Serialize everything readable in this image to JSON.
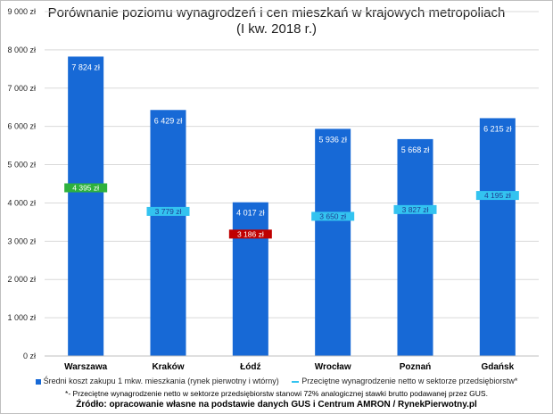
{
  "chart_data": {
    "type": "bar",
    "title_line1": "Porównanie poziomu wynagrodzeń i cen mieszkań w krajowych metropoliach",
    "title_line2": "(I kw. 2018 r.)",
    "categories": [
      "Warszawa",
      "Kraków",
      "Łódź",
      "Wrocław",
      "Poznań",
      "Gdańsk"
    ],
    "series": [
      {
        "name": "Średni koszt zakupu 1 mkw. mieszkania (rynek pierwotny i wtórny)",
        "values": [
          7824,
          6429,
          4017,
          5936,
          5668,
          6215
        ],
        "labels": [
          "7 824 zł",
          "6 429 zł",
          "4 017 zł",
          "5 936 zł",
          "5 668 zł",
          "6 215 zł"
        ],
        "color": "#1769d6"
      },
      {
        "name": "Przeciętne wynagrodzenie netto w sektorze przedsiębiorstw*",
        "values": [
          4395,
          3779,
          3186,
          3650,
          3827,
          4195
        ],
        "labels": [
          "4 395 zł",
          "3 779 zł",
          "3 186 zł",
          "3 650 zł",
          "3 827 zł",
          "4 195 zł"
        ],
        "color": "#33c3f0",
        "highlight_colors": [
          "#2eb13d",
          "#33c3f0",
          "#c00000",
          "#33c3f0",
          "#33c3f0",
          "#33c3f0"
        ]
      }
    ],
    "ylim": [
      0,
      9000
    ],
    "yticks": [
      0,
      1000,
      2000,
      3000,
      4000,
      5000,
      6000,
      7000,
      8000,
      9000
    ],
    "ytick_labels": [
      "0 zł",
      "1 000 zł",
      "2 000 zł",
      "3 000 zł",
      "4 000 zł",
      "5 000 zł",
      "6 000 zł",
      "7 000 zł",
      "8 000 zł",
      "9 000 zł"
    ],
    "grid": true,
    "legend_position": "bottom"
  },
  "footnote": "*- Przeciętne wynagrodzenie netto w sektorze przedsiębiorstw stanowi 72% analogicznej stawki brutto podawanej przez GUS.",
  "source": "Źródło: opracowanie własne na podstawie danych GUS i Centrum AMRON / RynekPierwotny.pl"
}
